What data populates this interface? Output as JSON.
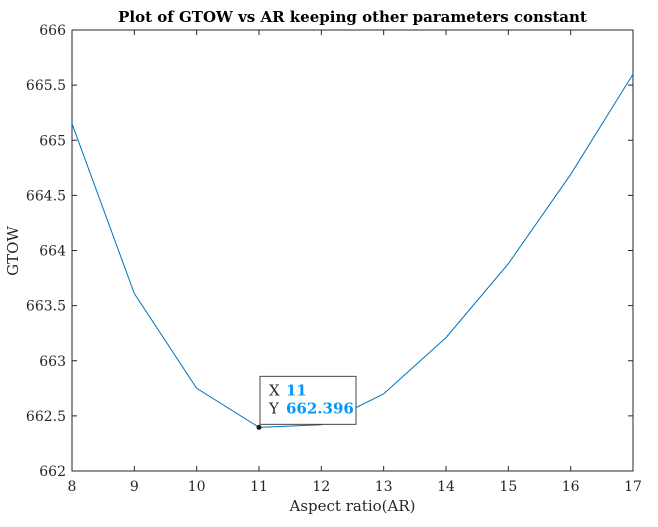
{
  "chart_data": {
    "type": "line",
    "title": "Plot of GTOW vs AR keeping other parameters constant",
    "xlabel": "Aspect ratio(AR)",
    "ylabel": "GTOW",
    "xlim": [
      8,
      17
    ],
    "ylim": [
      662,
      666
    ],
    "x_ticks": [
      8,
      9,
      10,
      11,
      12,
      13,
      14,
      15,
      16,
      17
    ],
    "y_ticks": [
      662,
      662.5,
      663,
      663.5,
      664,
      664.5,
      665,
      665.5,
      666
    ],
    "y_tick_labels": [
      "662",
      "662.5",
      "663",
      "663.5",
      "664",
      "664.5",
      "665",
      "665.5",
      "666"
    ],
    "x_tick_labels": [
      "8",
      "9",
      "10",
      "11",
      "12",
      "13",
      "14",
      "15",
      "16",
      "17"
    ],
    "series": [
      {
        "x": [
          8,
          9,
          10,
          11,
          12,
          13,
          14,
          15,
          16,
          17
        ],
        "y": [
          665.15,
          663.61,
          662.75,
          662.396,
          662.42,
          662.7,
          663.21,
          663.88,
          664.69,
          665.6
        ],
        "color": "#0072BD"
      }
    ],
    "box": true,
    "grid": false,
    "datatip": {
      "x_key": "X",
      "x_value": "11",
      "y_key": "Y",
      "y_value": "662.396",
      "point_x": 11,
      "point_y": 662.396,
      "value_color": "#0096FF"
    }
  }
}
